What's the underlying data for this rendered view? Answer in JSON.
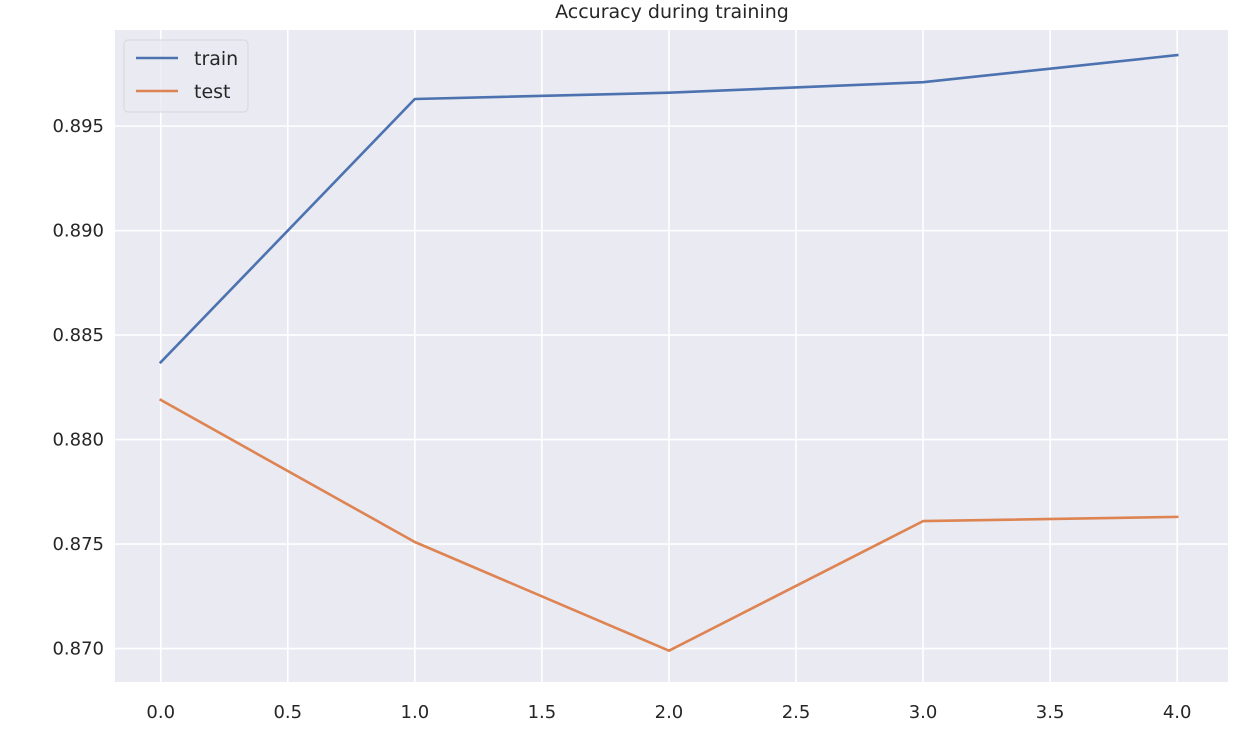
{
  "chart_data": {
    "type": "line",
    "title": "Accuracy during training",
    "xlabel": "",
    "ylabel": "",
    "x": [
      0,
      1,
      2,
      3,
      4
    ],
    "series": [
      {
        "name": "train",
        "color": "#4c72b0",
        "values": [
          0.8837,
          0.8963,
          0.8966,
          0.8971,
          0.8984
        ]
      },
      {
        "name": "test",
        "color": "#dd8452",
        "values": [
          0.8819,
          0.8751,
          0.8699,
          0.8761,
          0.8763
        ]
      }
    ],
    "xlim": [
      -0.18,
      4.2
    ],
    "ylim": [
      0.8684,
      0.8996
    ],
    "xticks": [
      0.0,
      0.5,
      1.0,
      1.5,
      2.0,
      2.5,
      3.0,
      3.5,
      4.0
    ],
    "xtick_labels": [
      "0.0",
      "0.5",
      "1.0",
      "1.5",
      "2.0",
      "2.5",
      "3.0",
      "3.5",
      "4.0"
    ],
    "yticks": [
      0.87,
      0.875,
      0.88,
      0.885,
      0.89,
      0.895
    ],
    "ytick_labels": [
      "0.870",
      "0.875",
      "0.880",
      "0.885",
      "0.890",
      "0.895"
    ],
    "grid": true,
    "legend_position": "top-left",
    "background_color": "#eaeaf2",
    "grid_color": "#ffffff"
  }
}
